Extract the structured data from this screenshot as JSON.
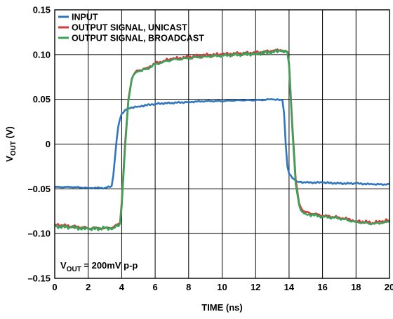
{
  "chart_data": {
    "type": "line",
    "xlabel": "TIME (ns)",
    "ylabel_main": "V",
    "ylabel_sub": "OUT",
    "ylabel_unit": " (V)",
    "xlim": [
      0,
      20
    ],
    "ylim": [
      -0.15,
      0.15
    ],
    "x_ticks": [
      0,
      2,
      4,
      6,
      8,
      10,
      12,
      14,
      16,
      18,
      20
    ],
    "x_tick_labels": [
      "0",
      "2",
      "4",
      "6",
      "8",
      "10",
      "12",
      "14",
      "16",
      "18",
      "20"
    ],
    "y_ticks": [
      -0.15,
      -0.1,
      -0.05,
      0,
      0.05,
      0.1,
      0.15
    ],
    "y_tick_labels": [
      "–0.15",
      "–0.10",
      "–0.05",
      "0",
      "0.05",
      "0.10",
      "0.15"
    ],
    "grid": true,
    "legend_position": "top-left",
    "annotation": {
      "main": "V",
      "sub": "OUT",
      "rest": " = 200mV p-p"
    },
    "series": [
      {
        "name": "INPUT",
        "color": "#2f75c0",
        "x": [
          0,
          1,
          2,
          3,
          3.4,
          3.5,
          3.6,
          3.7,
          3.8,
          3.9,
          4.0,
          4.2,
          4.4,
          4.6,
          5,
          6,
          7,
          8,
          9,
          10,
          11,
          12,
          13,
          13.6,
          13.7,
          13.8,
          13.9,
          14.0,
          14.2,
          14.5,
          15,
          16,
          17,
          18,
          19,
          20
        ],
        "y": [
          -0.048,
          -0.048,
          -0.049,
          -0.049,
          -0.047,
          -0.035,
          -0.015,
          0.005,
          0.02,
          0.028,
          0.034,
          0.038,
          0.04,
          0.041,
          0.042,
          0.045,
          0.046,
          0.047,
          0.048,
          0.048,
          0.049,
          0.049,
          0.05,
          0.049,
          0.035,
          0.0,
          -0.025,
          -0.033,
          -0.038,
          -0.042,
          -0.043,
          -0.043,
          -0.044,
          -0.044,
          -0.045,
          -0.045
        ]
      },
      {
        "name": "OUTPUT SIGNAL, UNICAST",
        "color": "#d9383a",
        "x": [
          0,
          1,
          2,
          3,
          3.5,
          3.9,
          4.0,
          4.2,
          4.4,
          4.6,
          4.8,
          5,
          5.5,
          6,
          6.5,
          7,
          8,
          9,
          10,
          11,
          12,
          13,
          13.5,
          13.9,
          14.0,
          14.2,
          14.4,
          14.6,
          14.8,
          15,
          16,
          17,
          18,
          19,
          19.5,
          20
        ],
        "y": [
          -0.09,
          -0.092,
          -0.094,
          -0.094,
          -0.093,
          -0.088,
          -0.065,
          0.0,
          0.05,
          0.073,
          0.08,
          0.082,
          0.085,
          0.09,
          0.093,
          0.095,
          0.097,
          0.099,
          0.1,
          0.101,
          0.102,
          0.104,
          0.105,
          0.103,
          0.09,
          0.02,
          -0.04,
          -0.066,
          -0.074,
          -0.076,
          -0.08,
          -0.082,
          -0.086,
          -0.088,
          -0.087,
          -0.085
        ]
      },
      {
        "name": "OUTPUT SIGNAL, BROADCAST",
        "color": "#3aa35a",
        "x": [
          0,
          1,
          2,
          3,
          3.5,
          3.9,
          4.0,
          4.2,
          4.4,
          4.6,
          4.8,
          5,
          5.5,
          6,
          6.5,
          7,
          8,
          9,
          10,
          11,
          12,
          13,
          13.5,
          13.9,
          14.0,
          14.2,
          14.4,
          14.6,
          14.8,
          15,
          16,
          17,
          18,
          19,
          19.5,
          20
        ],
        "y": [
          -0.092,
          -0.093,
          -0.095,
          -0.094,
          -0.094,
          -0.089,
          -0.07,
          -0.005,
          0.048,
          0.072,
          0.079,
          0.081,
          0.084,
          0.089,
          0.092,
          0.094,
          0.096,
          0.098,
          0.099,
          0.1,
          0.101,
          0.103,
          0.104,
          0.102,
          0.088,
          0.015,
          -0.045,
          -0.068,
          -0.076,
          -0.078,
          -0.081,
          -0.083,
          -0.087,
          -0.089,
          -0.088,
          -0.087
        ]
      }
    ]
  }
}
